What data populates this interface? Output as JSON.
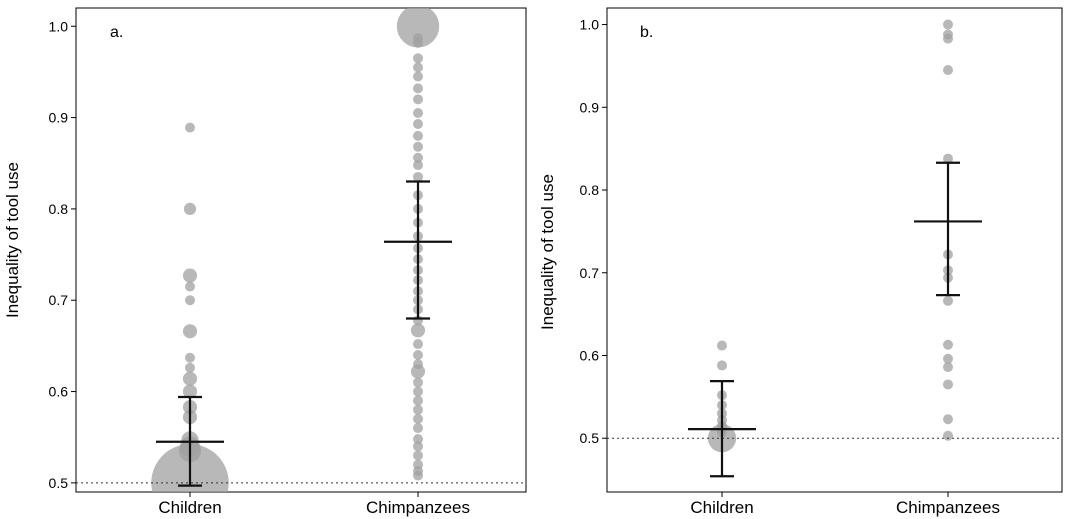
{
  "chart_data": [
    {
      "type": "scatter",
      "panel_label": "a.",
      "title": "",
      "xlabel": "",
      "ylabel": "Inequality of tool use",
      "categories": [
        "Children",
        "Chimpanzees"
      ],
      "ylim": [
        0.49,
        1.02
      ],
      "y_ticks": [
        0.5,
        0.6,
        0.7,
        0.8,
        0.9,
        1.0
      ],
      "y_tick_labels": [
        "0.5",
        "0.6",
        "0.7",
        "0.8",
        "0.9",
        "1.0"
      ],
      "reference_line": 0.5,
      "colors": {
        "point": "#a0a0a0",
        "error_bar": "#111111",
        "reference_line": "#333333"
      },
      "series": [
        {
          "category": "Children",
          "mean": 0.545,
          "ci_low": 0.497,
          "ci_high": 0.594,
          "points": [
            {
              "y": 0.5,
              "n": 60
            },
            {
              "y": 0.535,
              "n": 5
            },
            {
              "y": 0.54,
              "n": 4
            },
            {
              "y": 0.547,
              "n": 3
            },
            {
              "y": 0.572,
              "n": 2
            },
            {
              "y": 0.583,
              "n": 2
            },
            {
              "y": 0.6,
              "n": 2
            },
            {
              "y": 0.614,
              "n": 2
            },
            {
              "y": 0.626,
              "n": 1
            },
            {
              "y": 0.637,
              "n": 1
            },
            {
              "y": 0.666,
              "n": 2
            },
            {
              "y": 0.7,
              "n": 1
            },
            {
              "y": 0.715,
              "n": 1
            },
            {
              "y": 0.727,
              "n": 2
            },
            {
              "y": 0.8,
              "n": 1.5
            },
            {
              "y": 0.889,
              "n": 1
            }
          ]
        },
        {
          "category": "Chimpanzees",
          "mean": 0.764,
          "ci_low": 0.68,
          "ci_high": 0.83,
          "points": [
            {
              "y": 1.0,
              "n": 18
            },
            {
              "y": 0.987,
              "n": 1
            },
            {
              "y": 0.982,
              "n": 1
            },
            {
              "y": 0.965,
              "n": 1
            },
            {
              "y": 0.955,
              "n": 1
            },
            {
              "y": 0.945,
              "n": 1
            },
            {
              "y": 0.932,
              "n": 1
            },
            {
              "y": 0.92,
              "n": 1
            },
            {
              "y": 0.905,
              "n": 1
            },
            {
              "y": 0.893,
              "n": 1
            },
            {
              "y": 0.88,
              "n": 1
            },
            {
              "y": 0.868,
              "n": 1
            },
            {
              "y": 0.856,
              "n": 1
            },
            {
              "y": 0.848,
              "n": 1
            },
            {
              "y": 0.835,
              "n": 1
            },
            {
              "y": 0.815,
              "n": 1
            },
            {
              "y": 0.8,
              "n": 1
            },
            {
              "y": 0.785,
              "n": 1
            },
            {
              "y": 0.77,
              "n": 1
            },
            {
              "y": 0.757,
              "n": 1
            },
            {
              "y": 0.745,
              "n": 1
            },
            {
              "y": 0.733,
              "n": 1
            },
            {
              "y": 0.722,
              "n": 1
            },
            {
              "y": 0.71,
              "n": 1
            },
            {
              "y": 0.7,
              "n": 1
            },
            {
              "y": 0.69,
              "n": 1
            },
            {
              "y": 0.678,
              "n": 1
            },
            {
              "y": 0.667,
              "n": 2
            },
            {
              "y": 0.652,
              "n": 1
            },
            {
              "y": 0.64,
              "n": 1
            },
            {
              "y": 0.63,
              "n": 1
            },
            {
              "y": 0.622,
              "n": 2
            },
            {
              "y": 0.61,
              "n": 1
            },
            {
              "y": 0.6,
              "n": 1
            },
            {
              "y": 0.59,
              "n": 1
            },
            {
              "y": 0.58,
              "n": 1
            },
            {
              "y": 0.57,
              "n": 1
            },
            {
              "y": 0.56,
              "n": 1
            },
            {
              "y": 0.548,
              "n": 1
            },
            {
              "y": 0.54,
              "n": 1
            },
            {
              "y": 0.53,
              "n": 1
            },
            {
              "y": 0.52,
              "n": 1
            },
            {
              "y": 0.513,
              "n": 1
            },
            {
              "y": 0.508,
              "n": 1
            }
          ]
        }
      ]
    },
    {
      "type": "scatter",
      "panel_label": "b.",
      "title": "",
      "xlabel": "",
      "ylabel": "Inequality of tool use",
      "categories": [
        "Children",
        "Chimpanzees"
      ],
      "ylim": [
        0.435,
        1.02
      ],
      "y_ticks": [
        0.5,
        0.6,
        0.7,
        0.8,
        0.9,
        1.0
      ],
      "y_tick_labels": [
        "0.5",
        "0.6",
        "0.7",
        "0.8",
        "0.9",
        "1.0"
      ],
      "reference_line": 0.5,
      "colors": {
        "point": "#a0a0a0",
        "error_bar": "#111111",
        "reference_line": "#333333"
      },
      "series": [
        {
          "category": "Children",
          "mean": 0.511,
          "ci_low": 0.454,
          "ci_high": 0.569,
          "points": [
            {
              "y": 0.5,
              "n": 8
            },
            {
              "y": 0.507,
              "n": 1
            },
            {
              "y": 0.515,
              "n": 1
            },
            {
              "y": 0.522,
              "n": 1
            },
            {
              "y": 0.53,
              "n": 1
            },
            {
              "y": 0.54,
              "n": 1
            },
            {
              "y": 0.552,
              "n": 1
            },
            {
              "y": 0.588,
              "n": 1
            },
            {
              "y": 0.612,
              "n": 1
            }
          ]
        },
        {
          "category": "Chimpanzees",
          "mean": 0.762,
          "ci_low": 0.673,
          "ci_high": 0.833,
          "points": [
            {
              "y": 1.0,
              "n": 1
            },
            {
              "y": 0.988,
              "n": 1
            },
            {
              "y": 0.983,
              "n": 1
            },
            {
              "y": 0.945,
              "n": 1
            },
            {
              "y": 0.838,
              "n": 1
            },
            {
              "y": 0.722,
              "n": 1
            },
            {
              "y": 0.703,
              "n": 1
            },
            {
              "y": 0.694,
              "n": 1
            },
            {
              "y": 0.666,
              "n": 1
            },
            {
              "y": 0.613,
              "n": 1
            },
            {
              "y": 0.596,
              "n": 1
            },
            {
              "y": 0.586,
              "n": 1
            },
            {
              "y": 0.565,
              "n": 1
            },
            {
              "y": 0.523,
              "n": 1
            },
            {
              "y": 0.503,
              "n": 1
            }
          ]
        }
      ]
    }
  ]
}
